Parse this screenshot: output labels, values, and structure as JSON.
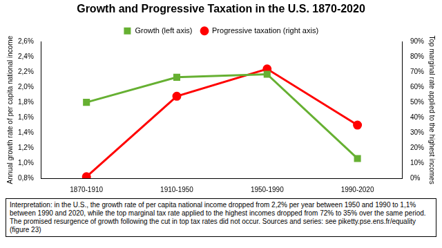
{
  "chart_data": {
    "type": "line",
    "title": "Growth and Progressive Taxation in the U.S. 1870-2020",
    "categories": [
      "1870-1910",
      "1910-1950",
      "1950-1990",
      "1990-2020"
    ],
    "series": [
      {
        "name": "Growth (left axis)",
        "color": "#66b032",
        "marker": "square",
        "values": [
          1.8,
          2.13,
          2.17,
          1.06
        ]
      },
      {
        "name": "Progressive taxation (right axis)",
        "color": "#ff0000",
        "marker": "circle",
        "axis": "y2",
        "values": [
          1,
          54,
          72,
          35
        ]
      }
    ],
    "y_label": "Annual growth rate of per capita national income",
    "y2_label": "Top marginal rate applied to the highest incomes",
    "ylim": [
      0.8,
      2.6
    ],
    "yticks": [
      {
        "value": 0.8,
        "label": "0,8%"
      },
      {
        "value": 1.0,
        "label": "1,0%"
      },
      {
        "value": 1.2,
        "label": "1,2%"
      },
      {
        "value": 1.4,
        "label": "1,4%"
      },
      {
        "value": 1.6,
        "label": "1,6%"
      },
      {
        "value": 1.8,
        "label": "1,8%"
      },
      {
        "value": 2.0,
        "label": "2,0%"
      },
      {
        "value": 2.2,
        "label": "2,2%"
      },
      {
        "value": 2.4,
        "label": "2,4%"
      },
      {
        "value": 2.6,
        "label": "2,6%"
      }
    ],
    "y2lim": [
      0,
      90
    ],
    "y2ticks": [
      {
        "value": 0,
        "label": "0%"
      },
      {
        "value": 10,
        "label": "10%"
      },
      {
        "value": 20,
        "label": "20%"
      },
      {
        "value": 30,
        "label": "30%"
      },
      {
        "value": 40,
        "label": "40%"
      },
      {
        "value": 50,
        "label": "50%"
      },
      {
        "value": 60,
        "label": "60%"
      },
      {
        "value": 70,
        "label": "70%"
      },
      {
        "value": 80,
        "label": "80%"
      },
      {
        "value": 90,
        "label": "90%"
      }
    ],
    "grid": false,
    "legend": "top",
    "annotation": "Interpretation: in the U.S., the growth rate of per capita national income dropped from 2,2% per year between 1950 and 1990 to 1,1% between 1990 and 2020, while the top marginal tax rate applied to the highest incomes dropped from 72% to 35% over the same period. The promised resurgence of growth following the cut in top tax rates did not occur. Sources and series: see piketty.pse.ens.fr/equality (figure 23)"
  }
}
